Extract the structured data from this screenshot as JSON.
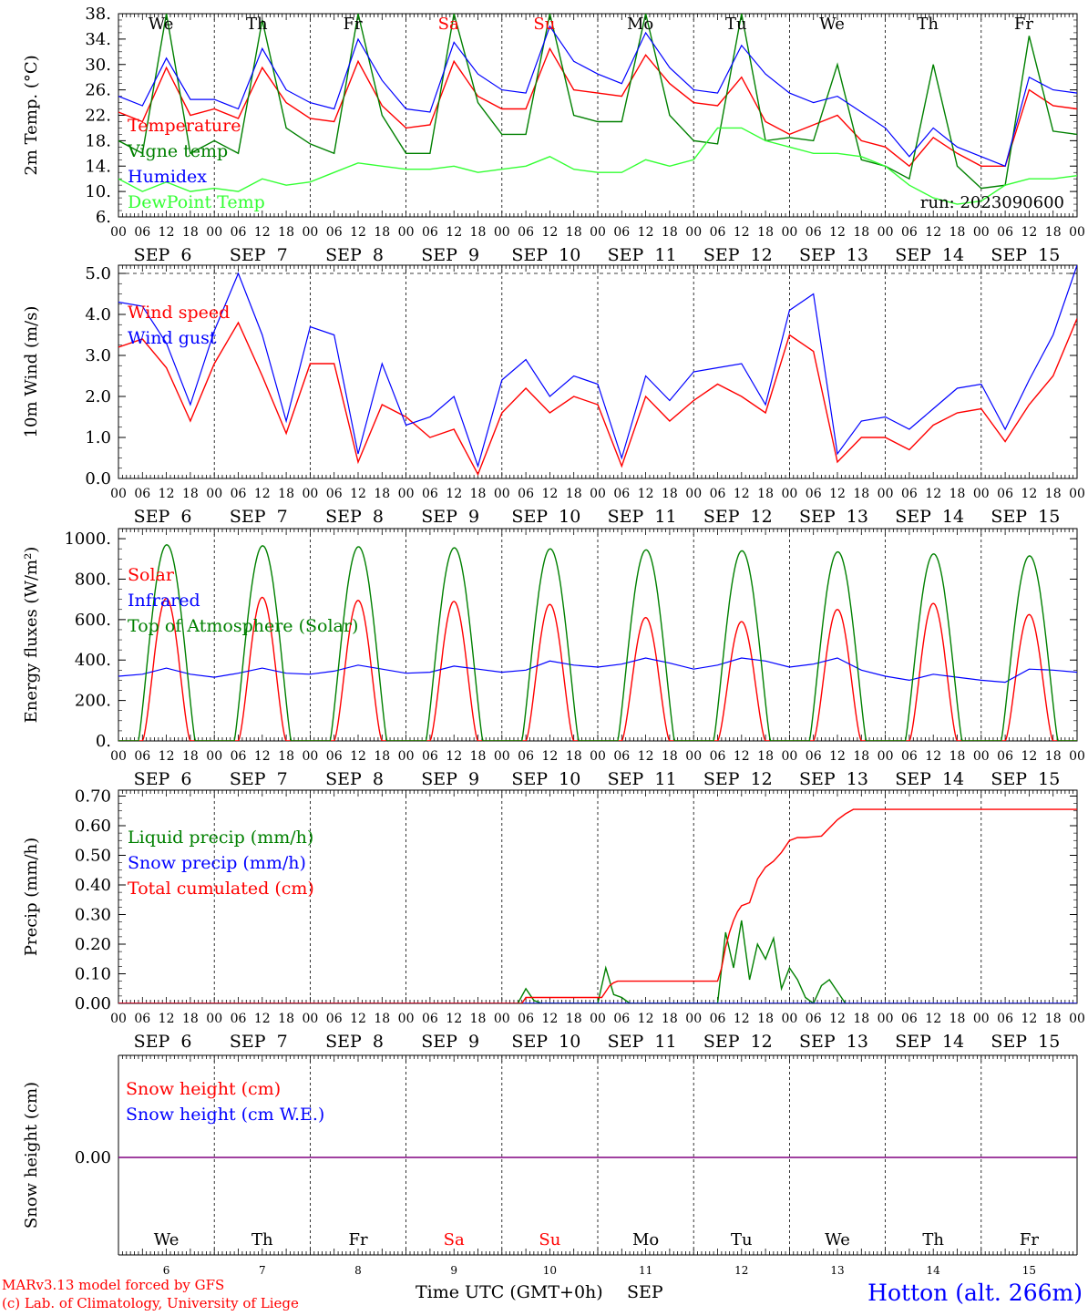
{
  "colors": {
    "temperature": "#ff0000",
    "vigne": "#008000",
    "humidex": "#0000ff",
    "dewpoint": "#33ff33",
    "solar": "#ff0000",
    "infrared": "#0000ff",
    "toa": "#008000",
    "liquid": "#008000",
    "snow_precip": "#0000ff",
    "cumulated": "#ff0000",
    "snow_height": "#ff0000",
    "snow_we": "#0000ff",
    "snow_line": "#800080",
    "weekend": "#ff0000",
    "weekday": "#000000",
    "station": "#0000ff",
    "credit": "#ff0000"
  },
  "x_axis": {
    "hour_ticks": [
      "00",
      "06",
      "12",
      "18"
    ],
    "last_hour_tick": "00",
    "months": [
      "SEP",
      "SEP",
      "SEP",
      "SEP",
      "SEP",
      "SEP",
      "SEP",
      "SEP",
      "SEP",
      "SEP"
    ],
    "days": [
      "6",
      "7",
      "8",
      "9",
      "10",
      "11",
      "12",
      "13",
      "14",
      "15"
    ],
    "weekdays": [
      "We",
      "Th",
      "Fr",
      "Sa",
      "Su",
      "Mo",
      "Tu",
      "We",
      "Th",
      "Fr"
    ],
    "weekend_flags": [
      false,
      false,
      false,
      true,
      true,
      false,
      false,
      false,
      false,
      false
    ]
  },
  "footer": {
    "time_label": "Time UTC (GMT+0h)",
    "month_label": "SEP",
    "credit_line1": "MARv3.13 model forced by GFS",
    "credit_line2": "(c) Lab. of Climatology, University of Liege",
    "station": "Hotton (alt. 266m)"
  },
  "chart_data": [
    {
      "type": "line",
      "ylabel": "2m Temp. (°C)",
      "ylim": [
        6,
        38
      ],
      "yticks": [
        "38.",
        "34.",
        "30.",
        "26.",
        "22.",
        "18.",
        "14.",
        "10.",
        "6."
      ],
      "annotation": "run: 2023090600",
      "x_unit": "hours since Sep 6 00 UTC",
      "x": [
        0,
        6,
        12,
        18,
        24,
        30,
        36,
        42,
        48,
        54,
        60,
        66,
        72,
        78,
        84,
        90,
        96,
        102,
        108,
        114,
        120,
        126,
        132,
        138,
        144,
        150,
        156,
        162,
        168,
        174,
        180,
        186,
        192,
        198,
        204,
        210,
        216,
        222,
        228,
        234,
        240
      ],
      "series": [
        {
          "name": "Temperature",
          "color_key": "temperature",
          "values": [
            22.5,
            21,
            29.5,
            22,
            23,
            21.5,
            29.5,
            24,
            21.5,
            21,
            30.5,
            23.5,
            20,
            20.5,
            30.5,
            25,
            23,
            23,
            32.5,
            26,
            25.5,
            25,
            31.5,
            27,
            24,
            23.5,
            28,
            21,
            19,
            20.5,
            22,
            18,
            17,
            14,
            18.5,
            16,
            14,
            14,
            26,
            23.5,
            23
          ]
        },
        {
          "name": "Vigne temp",
          "color_key": "vigne",
          "values": [
            18,
            16,
            38,
            16,
            18,
            16,
            37,
            20,
            17.5,
            16,
            38,
            22,
            16,
            16,
            38,
            24,
            19,
            19,
            38,
            22,
            21,
            21,
            38,
            22,
            18,
            17.5,
            38,
            18,
            18.5,
            18,
            30,
            15,
            14,
            12,
            30,
            14,
            10.5,
            11,
            34.5,
            19.5,
            19
          ]
        },
        {
          "name": "Humidex",
          "color_key": "humidex",
          "values": [
            25,
            23.5,
            31,
            24.5,
            24.5,
            23,
            32.5,
            26,
            24,
            23,
            34,
            27.5,
            23,
            22.5,
            33.5,
            28.5,
            26,
            25.5,
            36,
            30.5,
            28.5,
            27,
            35,
            29.5,
            26,
            25.5,
            33,
            28.5,
            25.5,
            24,
            25,
            22.5,
            20,
            15.5,
            20,
            17,
            15.5,
            14,
            28,
            26,
            25.5
          ]
        },
        {
          "name": "DewPoint Temp",
          "color_key": "dewpoint",
          "values": [
            12,
            10,
            11.5,
            10,
            10.5,
            10,
            12,
            11,
            11.5,
            13,
            14.5,
            14,
            13.5,
            13.5,
            14,
            13,
            13.5,
            14,
            15.5,
            13.5,
            13,
            13,
            15,
            14,
            15,
            20,
            20,
            18,
            17,
            16,
            16,
            15.5,
            14,
            11,
            9,
            8,
            8.5,
            11,
            12,
            12,
            12.5
          ]
        }
      ]
    },
    {
      "type": "line",
      "ylabel": "10m Wind (m/s)",
      "ylim": [
        0,
        5.2
      ],
      "yticks": [
        "5.0",
        "4.0",
        "3.0",
        "2.0",
        "1.0",
        "0.0"
      ],
      "x_unit": "hours since Sep 6 00 UTC",
      "x": [
        0,
        6,
        12,
        18,
        24,
        30,
        36,
        42,
        48,
        54,
        60,
        66,
        72,
        78,
        84,
        90,
        96,
        102,
        108,
        114,
        120,
        126,
        132,
        138,
        144,
        150,
        156,
        162,
        168,
        174,
        180,
        186,
        192,
        198,
        204,
        210,
        216,
        222,
        228,
        234,
        240
      ],
      "series": [
        {
          "name": "Wind speed",
          "color_key": "solar",
          "values": [
            3.2,
            3.4,
            2.7,
            1.4,
            2.8,
            3.8,
            2.5,
            1.1,
            2.8,
            2.8,
            0.4,
            1.8,
            1.5,
            1.0,
            1.2,
            0.1,
            1.6,
            2.2,
            1.6,
            2.0,
            1.8,
            0.3,
            2.0,
            1.4,
            1.9,
            2.3,
            2.0,
            1.6,
            3.5,
            3.1,
            0.4,
            1.0,
            1.0,
            0.7,
            1.3,
            1.6,
            1.7,
            0.9,
            1.8,
            2.5,
            3.9
          ]
        },
        {
          "name": "Wind gust",
          "color_key": "humidex",
          "values": [
            4.3,
            4.2,
            3.3,
            1.8,
            3.6,
            5.0,
            3.5,
            1.4,
            3.7,
            3.5,
            0.6,
            2.8,
            1.3,
            1.5,
            2.0,
            0.3,
            2.4,
            2.9,
            2.0,
            2.5,
            2.3,
            0.5,
            2.5,
            1.9,
            2.6,
            2.7,
            2.8,
            1.8,
            4.1,
            4.5,
            0.6,
            1.4,
            1.5,
            1.2,
            1.7,
            2.2,
            2.3,
            1.2,
            2.4,
            3.5,
            5.2
          ]
        }
      ]
    },
    {
      "type": "line",
      "ylabel": "Energy fluxes (W/m²)",
      "ylim": [
        0,
        1000
      ],
      "yticks": [
        "1000.",
        "800.",
        "600.",
        "400.",
        "200.",
        "0."
      ],
      "x_unit": "hours since Sep 6 00 UTC",
      "series": [
        {
          "name": "Solar",
          "color_key": "solar",
          "peak_values": [
            705,
            710,
            695,
            690,
            675,
            610,
            590,
            650,
            680,
            625
          ]
        },
        {
          "name": "Infrared",
          "color_key": "infrared",
          "x": [
            0,
            6,
            12,
            18,
            24,
            30,
            36,
            42,
            48,
            54,
            60,
            66,
            72,
            78,
            84,
            90,
            96,
            102,
            108,
            114,
            120,
            126,
            132,
            138,
            144,
            150,
            156,
            162,
            168,
            174,
            180,
            186,
            192,
            198,
            204,
            210,
            216,
            222,
            228,
            234,
            240
          ],
          "values": [
            320,
            330,
            360,
            330,
            315,
            335,
            360,
            335,
            330,
            345,
            375,
            355,
            335,
            340,
            370,
            355,
            340,
            350,
            395,
            375,
            365,
            380,
            410,
            385,
            355,
            375,
            410,
            395,
            365,
            380,
            410,
            350,
            320,
            300,
            330,
            315,
            300,
            290,
            355,
            350,
            340
          ]
        },
        {
          "name": "Top of Atmosphere (Solar)",
          "color_key": "toa",
          "peak_values": [
            970,
            965,
            960,
            955,
            950,
            945,
            940,
            935,
            925,
            915
          ]
        }
      ]
    },
    {
      "type": "line",
      "ylabel": "Precip (mm/h)",
      "ylim": [
        0,
        0.7
      ],
      "yticks": [
        "0.70",
        "0.60",
        "0.50",
        "0.40",
        "0.30",
        "0.20",
        "0.10",
        "0.00"
      ],
      "x_unit": "hours since Sep 6 00 UTC",
      "series": [
        {
          "name": "Liquid precip (mm/h)",
          "color_key": "liquid",
          "x": [
            100,
            102,
            104,
            106,
            120,
            122,
            124,
            126,
            128,
            150,
            152,
            154,
            156,
            158,
            160,
            162,
            164,
            166,
            168,
            170,
            172,
            174,
            176,
            178,
            180,
            182
          ],
          "values": [
            0,
            0.05,
            0.01,
            0,
            0,
            0.12,
            0.03,
            0.02,
            0,
            0,
            0.24,
            0.12,
            0.28,
            0.08,
            0.2,
            0.15,
            0.22,
            0.05,
            0.12,
            0.08,
            0.02,
            0,
            0.06,
            0.08,
            0.04,
            0
          ]
        },
        {
          "name": "Snow precip (mm/h)",
          "color_key": "snow_precip",
          "x": [
            0,
            240
          ],
          "values": [
            0,
            0
          ]
        },
        {
          "name": "Total cumulated (cm)",
          "color_key": "cumulated",
          "x": [
            0,
            101,
            102,
            121,
            122,
            123,
            124,
            125,
            150,
            151,
            152,
            153,
            154,
            155,
            156,
            158,
            159,
            160,
            162,
            164,
            166,
            167,
            168,
            170,
            172,
            176,
            180,
            182,
            184,
            240
          ],
          "values": [
            0,
            0,
            0.02,
            0.02,
            0.04,
            0.06,
            0.07,
            0.075,
            0.075,
            0.12,
            0.19,
            0.24,
            0.28,
            0.31,
            0.33,
            0.34,
            0.38,
            0.42,
            0.46,
            0.48,
            0.51,
            0.53,
            0.55,
            0.56,
            0.56,
            0.565,
            0.62,
            0.64,
            0.655,
            0.655
          ]
        }
      ]
    },
    {
      "type": "line",
      "ylabel": "Snow height (cm)",
      "yticks": [
        "0.00"
      ],
      "x_unit": "hours since Sep 6 00 UTC",
      "series": [
        {
          "name": "Snow height (cm)",
          "color_key": "snow_height",
          "x": [
            0,
            240
          ],
          "values": [
            0,
            0
          ]
        },
        {
          "name": "Snow height (cm W.E.)",
          "color_key": "snow_we",
          "x": [
            0,
            240
          ],
          "values": [
            0,
            0
          ]
        }
      ]
    }
  ]
}
